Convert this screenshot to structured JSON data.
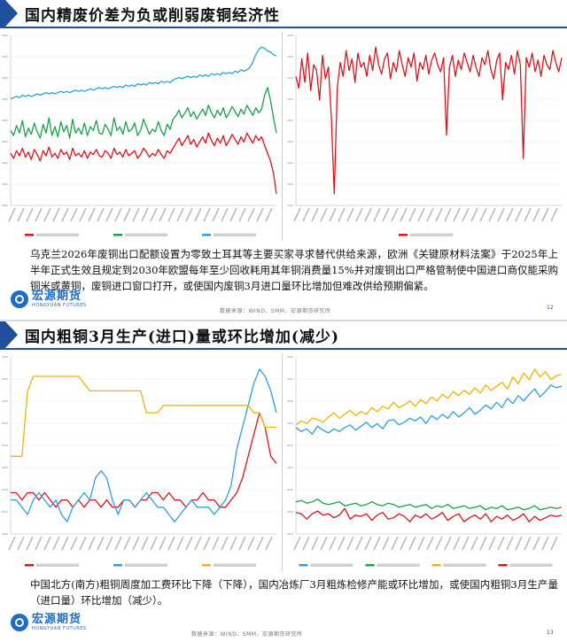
{
  "slides": [
    {
      "title": "国内精废价差为负或削弱废铜经济性",
      "body": "乌克兰2026年废铜出口配额设置为零致土耳其等主要买家寻求替代供给来源，欧洲《关键原材料法案》于2025年上半年正式生效且规定到2030年欧盟每年至少回收耗用其年铜消费量15%并对废铜出口严格管制使中国进口商仅能采购铜米或黄铜，废铜进口窗口打开，或使国内废铜3月进口量环比增加但难改供给预期偏紧。",
      "logo_cn": "宏源期货",
      "logo_en": "HONGYUAN FUTURES",
      "source": "数据来源：WIND、SMM、宏源期货研究所",
      "page": "12"
    },
    {
      "title": "国内粗铜3月生产(进口)量或环比增加(减少)",
      "body": "中国北方(南方)粗铜周度加工费环比下降（下降），国内冶炼厂3月粗炼检修产能或环比增加，或使国内粗铜3月生产量（进口量）环比增加（减少）。",
      "logo_cn": "宏源期货",
      "logo_en": "HONGYUAN FUTURES",
      "source": "数据来源：WIND、SMM、宏源期货研究所",
      "page": "13"
    }
  ],
  "colors": {
    "brand_blue": "#1f4e9c",
    "red": "#e0131b",
    "green": "#16a34a",
    "sky": "#29a3e0",
    "gold": "#f5b400"
  },
  "chart_data": [
    {
      "type": "line",
      "series": [
        {
          "name": "",
          "color": "#e0131b",
          "values": [
            12,
            8,
            14,
            10,
            16,
            9,
            13,
            7,
            15,
            11,
            6,
            14,
            10,
            17,
            9,
            12,
            8,
            15,
            11,
            13,
            7,
            16,
            10,
            12,
            9,
            14,
            8,
            13,
            11,
            15,
            10,
            9,
            14,
            12,
            8,
            16,
            11,
            13,
            9,
            15,
            10,
            12,
            14,
            8,
            11,
            16,
            13,
            9,
            12,
            10,
            15,
            11,
            8,
            14,
            12,
            16,
            20,
            24,
            18,
            22,
            26,
            19,
            23,
            17,
            21,
            25,
            20,
            28,
            22,
            18,
            24,
            20,
            26,
            18,
            22,
            27,
            23,
            19,
            25,
            21,
            28,
            24,
            20,
            26,
            22,
            25,
            18,
            12,
            6,
            -4,
            -20
          ]
        },
        {
          "name": "",
          "color": "#16a34a",
          "values": [
            30,
            26,
            34,
            28,
            38,
            25,
            32,
            27,
            36,
            29,
            24,
            35,
            28,
            40,
            26,
            33,
            25,
            37,
            29,
            34,
            24,
            39,
            28,
            32,
            27,
            36,
            26,
            33,
            30,
            38,
            28,
            27,
            35,
            31,
            26,
            40,
            30,
            33,
            27,
            37,
            29,
            31,
            36,
            26,
            30,
            39,
            33,
            27,
            31,
            29,
            37,
            30,
            26,
            35,
            31,
            39,
            42,
            46,
            40,
            44,
            48,
            41,
            45,
            39,
            43,
            47,
            42,
            50,
            44,
            40,
            46,
            42,
            48,
            40,
            44,
            49,
            45,
            41,
            47,
            43,
            50,
            46,
            42,
            48,
            44,
            47,
            58,
            64,
            54,
            40,
            28
          ]
        },
        {
          "name": "",
          "color": "#29a3e0",
          "values": [
            55,
            56,
            57,
            56,
            58,
            57,
            58,
            57,
            58,
            59,
            58,
            59,
            60,
            59,
            60,
            59,
            60,
            61,
            60,
            61,
            60,
            61,
            62,
            61,
            62,
            61,
            62,
            63,
            62,
            63,
            64,
            63,
            64,
            63,
            64,
            65,
            64,
            65,
            64,
            66,
            65,
            66,
            65,
            67,
            66,
            67,
            66,
            68,
            67,
            68,
            67,
            69,
            68,
            69,
            68,
            70,
            71,
            72,
            71,
            72,
            73,
            72,
            73,
            72,
            74,
            73,
            74,
            73,
            75,
            74,
            75,
            74,
            76,
            75,
            76,
            75,
            77,
            76,
            78,
            77,
            78,
            80,
            84,
            90,
            94,
            96,
            95,
            93,
            92,
            90,
            89
          ]
        }
      ]
    },
    {
      "type": "line",
      "series": [
        {
          "name": "",
          "color": "#e0131b",
          "values": [
            40,
            30,
            55,
            35,
            60,
            28,
            50,
            45,
            20,
            58,
            38,
            48,
            5,
            -60,
            30,
            52,
            40,
            62,
            45,
            55,
            35,
            60,
            48,
            52,
            40,
            58,
            45,
            65,
            50,
            42,
            55,
            60,
            38,
            52,
            44,
            62,
            50,
            40,
            56,
            48,
            60,
            36,
            52,
            46,
            58,
            42,
            54,
            60,
            50,
            44,
            56,
            -10,
            48,
            58,
            40,
            54,
            46,
            60,
            52,
            44,
            58,
            48,
            40,
            56,
            50,
            62,
            46,
            38,
            54,
            60,
            20,
            52,
            46,
            58,
            42,
            62,
            50,
            -30,
            56,
            48,
            60,
            44,
            54,
            40,
            58,
            50,
            46,
            62,
            52,
            44,
            56
          ]
        }
      ]
    },
    {
      "type": "line",
      "series": [
        {
          "name": "",
          "color": "#e0131b",
          "values": [
            1.8,
            1.8,
            1.6,
            1.8,
            1.8,
            1.6,
            1.8,
            1.6,
            1.4,
            1.6,
            1.6,
            1.4,
            1.6,
            1.4,
            1.6,
            1.6,
            1.4,
            1.6,
            1.4,
            1.4,
            1.6,
            1.6,
            1.4,
            1.6,
            1.6,
            1.8,
            1.8,
            1.6,
            1.8,
            1.6,
            1.6,
            1.4,
            1.6,
            1.6,
            1.8,
            1.6,
            1.6,
            1.4,
            1.4,
            1.6,
            1.8,
            2.2,
            2.8,
            3.4,
            4.0,
            3.6,
            2.8,
            2.6
          ]
        },
        {
          "name": "",
          "color": "#29a3e0",
          "values": [
            1.6,
            1.6,
            1.4,
            1.2,
            1.6,
            1.8,
            1.6,
            1.4,
            1.6,
            1.2,
            1.0,
            1.4,
            1.6,
            1.8,
            1.6,
            2.2,
            2.4,
            2.2,
            1.6,
            1.2,
            1.6,
            1.6,
            1.4,
            1.6,
            1.8,
            1.6,
            1.4,
            1.4,
            1.2,
            1.0,
            1.2,
            1.4,
            1.6,
            1.4,
            1.4,
            1.4,
            1.2,
            1.4,
            1.6,
            2.0,
            3.0,
            3.6,
            4.2,
            4.8,
            5.2,
            5.0,
            4.6,
            4.0
          ]
        },
        {
          "name": "",
          "color": "#f5b400",
          "values": [
            2.8,
            2.8,
            2.8,
            4.6,
            5.0,
            5.0,
            5.0,
            5.0,
            5.0,
            5.0,
            5.0,
            5.0,
            5.0,
            4.8,
            4.6,
            4.6,
            4.6,
            4.6,
            4.6,
            4.6,
            4.6,
            4.6,
            4.6,
            4.6,
            4.0,
            4.0,
            4.0,
            4.2,
            4.2,
            4.2,
            4.2,
            4.2,
            4.2,
            4.2,
            4.2,
            4.2,
            4.2,
            4.2,
            4.2,
            4.2,
            4.2,
            4.2,
            4.2,
            4.0,
            4.0,
            3.6,
            3.6,
            3.6
          ]
        }
      ]
    },
    {
      "type": "line",
      "series": [
        {
          "name": "",
          "color": "#29a3e0",
          "values": [
            7.4,
            7.1,
            7.3,
            6.9,
            7.5,
            7.2,
            7.0,
            7.3,
            7.1,
            7.4,
            7.6,
            7.2,
            7.5,
            7.8,
            7.4,
            7.7,
            7.3,
            7.9,
            8.0,
            7.6,
            7.8,
            8.1,
            7.9,
            8.2,
            7.7,
            8.3,
            8.0,
            8.4,
            8.1,
            8.6,
            8.2,
            8.5,
            8.9,
            8.4,
            8.7,
            9.1,
            8.8,
            9.3,
            8.9,
            9.6,
            9.2,
            9.8,
            9.4,
            9.9,
            10.3,
            9.7,
            10.1,
            10.6,
            10.4,
            10.5
          ]
        },
        {
          "name": "",
          "color": "#16a34a",
          "values": [
            1.8,
            1.9,
            1.7,
            1.8,
            2.0,
            1.7,
            1.6,
            1.7,
            1.8,
            1.5,
            1.6,
            1.7,
            1.5,
            1.6,
            1.8,
            1.6,
            1.5,
            1.7,
            1.6,
            1.4,
            1.5,
            1.6,
            1.4,
            1.5,
            1.6,
            1.3,
            1.5,
            1.4,
            1.6,
            1.3,
            1.4,
            1.5,
            1.3,
            1.4,
            1.5,
            1.2,
            1.4,
            1.3,
            1.5,
            1.2,
            1.3,
            1.4,
            1.2,
            1.3,
            1.5,
            1.2,
            1.3,
            1.4,
            1.3,
            1.4
          ]
        },
        {
          "name": "",
          "color": "#f5b400",
          "values": [
            7.6,
            7.9,
            7.7,
            8.1,
            8.0,
            7.8,
            8.2,
            8.5,
            8.1,
            8.4,
            8.7,
            8.3,
            8.6,
            8.4,
            8.9,
            8.6,
            9.0,
            8.8,
            9.3,
            8.9,
            9.1,
            9.4,
            9.0,
            9.5,
            9.2,
            9.7,
            9.4,
            9.9,
            9.6,
            10.1,
            9.8,
            10.2,
            9.9,
            10.4,
            10.0,
            10.6,
            10.2,
            10.5,
            10.8,
            10.3,
            11.2,
            10.7,
            11.5,
            11.0,
            11.8,
            11.2,
            11.6,
            11.0,
            11.3,
            11.4
          ]
        },
        {
          "name": "",
          "color": "#e0131b",
          "values": [
            1.0,
            0.9,
            0.5,
            0.9,
            1.1,
            0.8,
            0.9,
            0.6,
            0.8,
            1.3,
            0.5,
            0.8,
            0.7,
            0.9,
            0.4,
            0.8,
            1.0,
            0.5,
            0.6,
            0.9,
            0.7,
            0.3,
            0.8,
            0.6,
            0.9,
            0.5,
            0.7,
            1.0,
            0.4,
            0.7,
            0.9,
            0.3,
            0.6,
            0.8,
            0.5,
            0.9,
            0.3,
            0.7,
            0.5,
            0.8,
            0.4,
            0.6,
            0.9,
            0.3,
            0.7,
            0.4,
            0.6,
            0.8,
            0.7,
            0.8
          ]
        }
      ]
    }
  ]
}
